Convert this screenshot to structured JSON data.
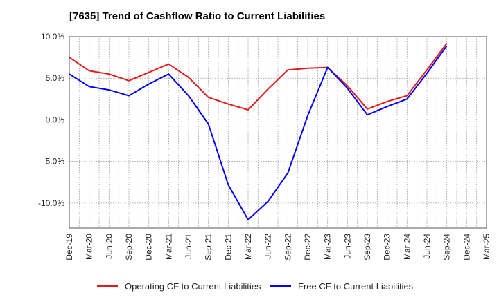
{
  "chart_data": {
    "type": "line",
    "title": "[7635]  Trend of Cashflow Ratio to Current Liabilities",
    "xlabel": "",
    "ylabel": "",
    "ylim": [
      -13,
      10
    ],
    "yticks": [
      "10.0%",
      "5.0%",
      "0.0%",
      "-5.0%",
      "-10.0%"
    ],
    "ytick_values": [
      10,
      5,
      0,
      -5,
      -10
    ],
    "categories": [
      "Dec-19",
      "Mar-20",
      "Jun-20",
      "Sep-20",
      "Dec-20",
      "Mar-21",
      "Jun-21",
      "Sep-21",
      "Dec-21",
      "Mar-22",
      "Jun-22",
      "Sep-22",
      "Dec-22",
      "Mar-23",
      "Jun-23",
      "Sep-23",
      "Dec-23",
      "Mar-24",
      "Jun-24",
      "Sep-24",
      "Dec-24",
      "Mar-25"
    ],
    "grid": true,
    "legend_position": "bottom",
    "series": [
      {
        "name": "Operating CF to Current Liabilities",
        "color": "#e31a1c",
        "values": [
          7.5,
          5.9,
          5.5,
          4.7,
          5.7,
          6.7,
          5.1,
          2.7,
          1.9,
          1.2,
          3.7,
          6.0,
          6.2,
          6.3,
          4.1,
          1.3,
          2.2,
          2.9,
          6.0,
          9.2,
          null,
          null
        ]
      },
      {
        "name": "Free CF to Current Liabilities",
        "color": "#0000ff",
        "values": [
          5.5,
          4.0,
          3.6,
          2.9,
          4.3,
          5.5,
          2.9,
          -0.5,
          -7.8,
          -12.0,
          -9.8,
          -6.4,
          0.5,
          6.3,
          3.8,
          0.6,
          1.6,
          2.5,
          5.6,
          8.9,
          null,
          null
        ]
      }
    ]
  }
}
